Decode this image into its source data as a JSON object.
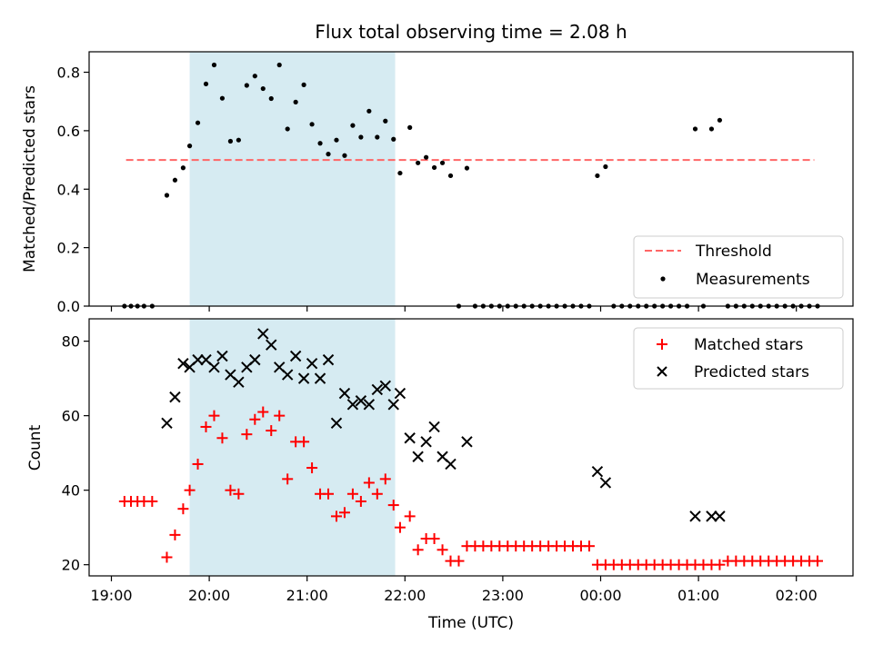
{
  "chart_data": [
    {
      "type": "scatter",
      "title": "Flux total observing time = 2.08 h",
      "xlabel": "",
      "ylabel": "Matched/Predicted stars",
      "ylim": [
        0,
        0.87
      ],
      "yticks": [
        0.0,
        0.2,
        0.4,
        0.6,
        0.8
      ],
      "ytick_labels": [
        "0.0",
        "0.2",
        "0.4",
        "0.6",
        "0.8"
      ],
      "shaded_span": [
        "19:48",
        "21:54"
      ],
      "shaded_color": "#add8e6",
      "legend": {
        "placement": "lower-right",
        "entries": [
          "Threshold",
          "Measurements"
        ]
      },
      "series": [
        {
          "name": "Threshold",
          "style": "dashed-line",
          "color": "#ff6666",
          "points": [
            [
              "19:09",
              0.5
            ],
            [
              "02:11",
              0.5
            ]
          ]
        },
        {
          "name": "Measurements",
          "style": "dot",
          "color": "#000000",
          "points": [
            [
              "19:08",
              0.0
            ],
            [
              "19:12",
              0.0
            ],
            [
              "19:16",
              0.0
            ],
            [
              "19:20",
              0.0
            ],
            [
              "19:25",
              0.0
            ],
            [
              "19:34",
              0.379
            ],
            [
              "19:39",
              0.431
            ],
            [
              "19:44",
              0.473
            ],
            [
              "19:48",
              0.548
            ],
            [
              "19:53",
              0.627
            ],
            [
              "19:58",
              0.76
            ],
            [
              "20:03",
              0.825
            ],
            [
              "20:08",
              0.711
            ],
            [
              "20:13",
              0.564
            ],
            [
              "20:18",
              0.568
            ],
            [
              "20:23",
              0.755
            ],
            [
              "20:28",
              0.787
            ],
            [
              "20:33",
              0.744
            ],
            [
              "20:38",
              0.71
            ],
            [
              "20:43",
              0.825
            ],
            [
              "20:48",
              0.606
            ],
            [
              "20:53",
              0.698
            ],
            [
              "20:58",
              0.757
            ],
            [
              "21:03",
              0.622
            ],
            [
              "21:08",
              0.557
            ],
            [
              "21:13",
              0.52
            ],
            [
              "21:18",
              0.568
            ],
            [
              "21:23",
              0.515
            ],
            [
              "21:28",
              0.618
            ],
            [
              "21:33",
              0.578
            ],
            [
              "21:38",
              0.667
            ],
            [
              "21:43",
              0.578
            ],
            [
              "21:48",
              0.633
            ],
            [
              "21:53",
              0.571
            ],
            [
              "21:57",
              0.455
            ],
            [
              "22:03",
              0.611
            ],
            [
              "22:08",
              0.49
            ],
            [
              "22:13",
              0.509
            ],
            [
              "22:18",
              0.474
            ],
            [
              "22:23",
              0.49
            ],
            [
              "22:28",
              0.446
            ],
            [
              "22:33",
              0.0
            ],
            [
              "22:38",
              0.472
            ],
            [
              "22:43",
              0.0
            ],
            [
              "22:48",
              0.0
            ],
            [
              "22:53",
              0.0
            ],
            [
              "22:58",
              0.0
            ],
            [
              "23:03",
              0.0
            ],
            [
              "23:08",
              0.0
            ],
            [
              "23:13",
              0.0
            ],
            [
              "23:18",
              0.0
            ],
            [
              "23:23",
              0.0
            ],
            [
              "23:28",
              0.0
            ],
            [
              "23:33",
              0.0
            ],
            [
              "23:38",
              0.0
            ],
            [
              "23:43",
              0.0
            ],
            [
              "23:48",
              0.0
            ],
            [
              "23:53",
              0.0
            ],
            [
              "23:58",
              0.446
            ],
            [
              "00:03",
              0.477
            ],
            [
              "00:08",
              0.0
            ],
            [
              "00:13",
              0.0
            ],
            [
              "00:18",
              0.0
            ],
            [
              "00:23",
              0.0
            ],
            [
              "00:28",
              0.0
            ],
            [
              "00:33",
              0.0
            ],
            [
              "00:38",
              0.0
            ],
            [
              "00:43",
              0.0
            ],
            [
              "00:48",
              0.0
            ],
            [
              "00:53",
              0.0
            ],
            [
              "00:58",
              0.606
            ],
            [
              "01:03",
              0.0
            ],
            [
              "01:08",
              0.606
            ],
            [
              "01:13",
              0.636
            ],
            [
              "01:18",
              0.0
            ],
            [
              "01:23",
              0.0
            ],
            [
              "01:28",
              0.0
            ],
            [
              "01:33",
              0.0
            ],
            [
              "01:38",
              0.0
            ],
            [
              "01:43",
              0.0
            ],
            [
              "01:48",
              0.0
            ],
            [
              "01:53",
              0.0
            ],
            [
              "01:58",
              0.0
            ],
            [
              "02:03",
              0.0
            ],
            [
              "02:08",
              0.0
            ],
            [
              "02:13",
              0.0
            ]
          ]
        }
      ]
    },
    {
      "type": "scatter",
      "title": "",
      "xlabel": "Time (UTC)",
      "ylabel": "Count",
      "ylim": [
        17,
        86
      ],
      "yticks": [
        20,
        40,
        60,
        80
      ],
      "ytick_labels": [
        "20",
        "40",
        "60",
        "80"
      ],
      "xticks": [
        "19:00",
        "20:00",
        "21:00",
        "22:00",
        "23:00",
        "00:00",
        "01:00",
        "02:00"
      ],
      "shaded_span": [
        "19:48",
        "21:54"
      ],
      "shaded_color": "#add8e6",
      "legend": {
        "placement": "top-right",
        "entries": [
          "Matched stars",
          "Predicted stars"
        ]
      },
      "series": [
        {
          "name": "Matched stars",
          "style": "plus",
          "color": "#ff0000",
          "points": [
            [
              "19:08",
              37
            ],
            [
              "19:12",
              37
            ],
            [
              "19:16",
              37
            ],
            [
              "19:20",
              37
            ],
            [
              "19:25",
              37
            ],
            [
              "19:34",
              22
            ],
            [
              "19:39",
              28
            ],
            [
              "19:44",
              35
            ],
            [
              "19:48",
              40
            ],
            [
              "19:53",
              47
            ],
            [
              "19:58",
              57
            ],
            [
              "20:03",
              60
            ],
            [
              "20:08",
              54
            ],
            [
              "20:13",
              40
            ],
            [
              "20:18",
              39
            ],
            [
              "20:23",
              55
            ],
            [
              "20:28",
              59
            ],
            [
              "20:33",
              61
            ],
            [
              "20:38",
              56
            ],
            [
              "20:43",
              60
            ],
            [
              "20:48",
              43
            ],
            [
              "20:53",
              53
            ],
            [
              "20:58",
              53
            ],
            [
              "21:03",
              46
            ],
            [
              "21:08",
              39
            ],
            [
              "21:13",
              39
            ],
            [
              "21:18",
              33
            ],
            [
              "21:23",
              34
            ],
            [
              "21:28",
              39
            ],
            [
              "21:33",
              37
            ],
            [
              "21:38",
              42
            ],
            [
              "21:43",
              39
            ],
            [
              "21:48",
              43
            ],
            [
              "21:53",
              36
            ],
            [
              "21:57",
              30
            ],
            [
              "22:03",
              33
            ],
            [
              "22:08",
              24
            ],
            [
              "22:13",
              27
            ],
            [
              "22:18",
              27
            ],
            [
              "22:23",
              24
            ],
            [
              "22:28",
              21
            ],
            [
              "22:33",
              21
            ],
            [
              "22:38",
              25
            ],
            [
              "22:43",
              25
            ],
            [
              "22:48",
              25
            ],
            [
              "22:53",
              25
            ],
            [
              "22:58",
              25
            ],
            [
              "23:03",
              25
            ],
            [
              "23:08",
              25
            ],
            [
              "23:13",
              25
            ],
            [
              "23:18",
              25
            ],
            [
              "23:23",
              25
            ],
            [
              "23:28",
              25
            ],
            [
              "23:33",
              25
            ],
            [
              "23:38",
              25
            ],
            [
              "23:43",
              25
            ],
            [
              "23:48",
              25
            ],
            [
              "23:53",
              25
            ],
            [
              "23:58",
              20
            ],
            [
              "00:03",
              20
            ],
            [
              "00:08",
              20
            ],
            [
              "00:13",
              20
            ],
            [
              "00:18",
              20
            ],
            [
              "00:23",
              20
            ],
            [
              "00:28",
              20
            ],
            [
              "00:33",
              20
            ],
            [
              "00:38",
              20
            ],
            [
              "00:43",
              20
            ],
            [
              "00:48",
              20
            ],
            [
              "00:53",
              20
            ],
            [
              "00:58",
              20
            ],
            [
              "01:03",
              20
            ],
            [
              "01:08",
              20
            ],
            [
              "01:13",
              20
            ],
            [
              "01:18",
              21
            ],
            [
              "01:23",
              21
            ],
            [
              "01:28",
              21
            ],
            [
              "01:33",
              21
            ],
            [
              "01:38",
              21
            ],
            [
              "01:43",
              21
            ],
            [
              "01:48",
              21
            ],
            [
              "01:53",
              21
            ],
            [
              "01:58",
              21
            ],
            [
              "02:03",
              21
            ],
            [
              "02:08",
              21
            ],
            [
              "02:13",
              21
            ]
          ]
        },
        {
          "name": "Predicted stars",
          "style": "x",
          "color": "#000000",
          "points": [
            [
              "19:34",
              58
            ],
            [
              "19:39",
              65
            ],
            [
              "19:44",
              74
            ],
            [
              "19:48",
              73
            ],
            [
              "19:53",
              75
            ],
            [
              "19:58",
              75
            ],
            [
              "20:03",
              73
            ],
            [
              "20:08",
              76
            ],
            [
              "20:13",
              71
            ],
            [
              "20:18",
              69
            ],
            [
              "20:23",
              73
            ],
            [
              "20:28",
              75
            ],
            [
              "20:33",
              82
            ],
            [
              "20:38",
              79
            ],
            [
              "20:43",
              73
            ],
            [
              "20:48",
              71
            ],
            [
              "20:53",
              76
            ],
            [
              "20:58",
              70
            ],
            [
              "21:03",
              74
            ],
            [
              "21:08",
              70
            ],
            [
              "21:13",
              75
            ],
            [
              "21:18",
              58
            ],
            [
              "21:23",
              66
            ],
            [
              "21:28",
              63
            ],
            [
              "21:33",
              64
            ],
            [
              "21:38",
              63
            ],
            [
              "21:43",
              67
            ],
            [
              "21:48",
              68
            ],
            [
              "21:53",
              63
            ],
            [
              "21:57",
              66
            ],
            [
              "22:03",
              54
            ],
            [
              "22:08",
              49
            ],
            [
              "22:13",
              53
            ],
            [
              "22:18",
              57
            ],
            [
              "22:23",
              49
            ],
            [
              "22:28",
              47
            ],
            [
              "22:38",
              53
            ],
            [
              "23:58",
              45
            ],
            [
              "00:03",
              42
            ],
            [
              "00:58",
              33
            ],
            [
              "01:08",
              33
            ],
            [
              "01:13",
              33
            ]
          ]
        }
      ]
    }
  ]
}
